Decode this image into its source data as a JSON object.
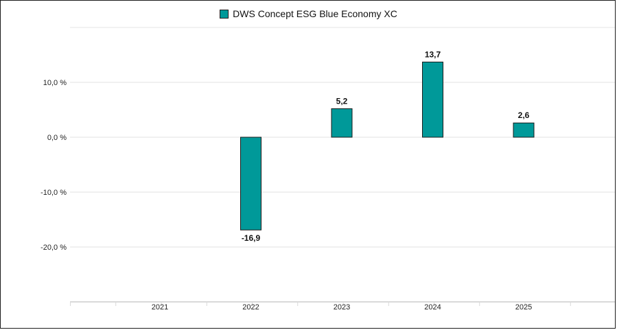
{
  "chart_data": {
    "type": "bar",
    "categories": [
      "2021",
      "2022",
      "2023",
      "2024",
      "2025"
    ],
    "series": [
      {
        "name": "DWS Concept ESG Blue Economy XC",
        "values": [
          null,
          -16.9,
          5.2,
          13.7,
          2.6
        ],
        "labels": [
          "",
          "-16,9",
          "5,2",
          "13,7",
          "2,6"
        ],
        "color": "#009999"
      }
    ],
    "yticks": [
      {
        "value": 10,
        "label": "10,0 %"
      },
      {
        "value": 0,
        "label": "0,0 %"
      },
      {
        "value": -10,
        "label": "-10,0 %"
      },
      {
        "value": -20,
        "label": "-20,0 %"
      }
    ],
    "ylim": [
      -30,
      20
    ],
    "grid": true,
    "legend_position": "top-center"
  }
}
